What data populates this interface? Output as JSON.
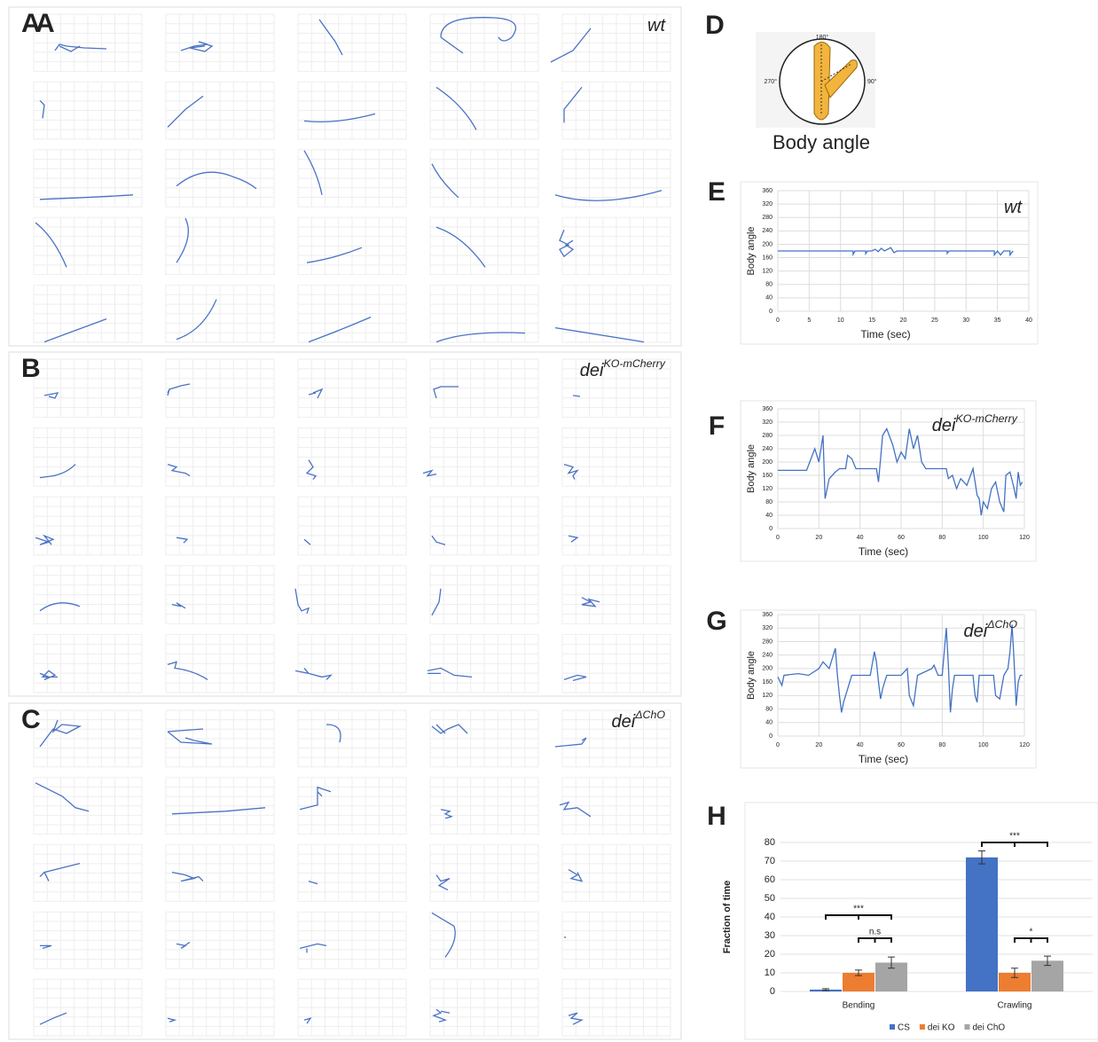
{
  "trajectory_panels": [
    {
      "label": "A",
      "genotype": "wt"
    },
    {
      "label": "B",
      "genotype": "dei",
      "superscript": "KO-mCherry"
    },
    {
      "label": "C",
      "genotype": "dei",
      "superscript": "ΔChO"
    }
  ],
  "diagram": {
    "label": "D",
    "top": "180°",
    "right": "90°",
    "left": "270°",
    "caption": "Body angle"
  },
  "chart_data": [
    {
      "type": "line",
      "label": "E",
      "annotation": {
        "text": "wt"
      },
      "ylabel": "Body angle",
      "xlabel": "Time (sec)",
      "color": "#4472c4",
      "grid": true,
      "xlim": [
        0,
        40
      ],
      "xticks": [
        0,
        5,
        10,
        15,
        20,
        25,
        30,
        35,
        40
      ],
      "ylim": [
        0,
        360
      ],
      "yticks": [
        0,
        40,
        80,
        120,
        160,
        200,
        240,
        280,
        320,
        360
      ],
      "x": [
        0,
        12,
        12,
        12.3,
        14,
        14,
        14.3,
        15,
        15.5,
        16,
        16.5,
        17,
        18,
        18.5,
        19,
        27,
        27,
        27.3,
        34.5,
        34.5,
        35,
        35.5,
        36,
        37,
        37,
        37.5
      ],
      "values": [
        180,
        180,
        170,
        180,
        180,
        172,
        180,
        180,
        185,
        178,
        188,
        180,
        190,
        175,
        180,
        180,
        173,
        180,
        180,
        168,
        180,
        168,
        180,
        180,
        168,
        180
      ]
    },
    {
      "type": "line",
      "label": "F",
      "annotation": {
        "text": "dei",
        "superscript": "KO-mCherry"
      },
      "ylabel": "Body angle",
      "xlabel": "Time (sec)",
      "color": "#4472c4",
      "grid": true,
      "xlim": [
        0,
        120
      ],
      "xticks": [
        0,
        20,
        40,
        60,
        80,
        100,
        120
      ],
      "ylim": [
        0,
        360
      ],
      "yticks": [
        0,
        40,
        80,
        120,
        160,
        200,
        240,
        280,
        320,
        360
      ],
      "x": [
        0,
        14,
        18,
        20,
        22,
        23,
        25,
        28,
        30,
        33,
        34,
        36,
        38,
        48,
        49,
        51,
        53,
        56,
        58,
        60,
        62,
        64,
        66,
        68,
        70,
        72,
        82,
        83,
        85,
        87,
        89,
        92,
        95,
        97,
        98,
        99,
        100,
        102,
        104,
        106,
        108,
        110,
        111,
        113,
        115,
        116,
        117,
        118,
        119
      ],
      "values": [
        175,
        175,
        240,
        200,
        280,
        90,
        150,
        170,
        180,
        180,
        220,
        210,
        180,
        180,
        140,
        280,
        300,
        250,
        200,
        230,
        210,
        300,
        240,
        280,
        200,
        180,
        180,
        150,
        160,
        120,
        150,
        130,
        180,
        100,
        90,
        40,
        80,
        60,
        120,
        140,
        80,
        50,
        160,
        170,
        120,
        90,
        170,
        130,
        140
      ]
    },
    {
      "type": "line",
      "label": "G",
      "annotation": {
        "text": "dei",
        "superscript": "ΔChO"
      },
      "ylabel": "Body angle",
      "xlabel": "Time (sec)",
      "color": "#4472c4",
      "grid": true,
      "xlim": [
        0,
        120
      ],
      "xticks": [
        0,
        20,
        40,
        60,
        80,
        100,
        120
      ],
      "ylim": [
        0,
        360
      ],
      "yticks": [
        0,
        40,
        80,
        120,
        160,
        200,
        240,
        280,
        320,
        360
      ],
      "x": [
        0,
        2,
        3,
        10,
        15,
        20,
        22,
        25,
        27,
        28,
        29,
        30,
        31,
        32,
        34,
        36,
        45,
        47,
        48,
        49,
        50,
        51,
        53,
        60,
        63,
        64,
        66,
        68,
        75,
        76,
        78,
        80,
        81,
        82,
        83,
        84,
        85,
        86,
        95,
        96,
        97,
        98,
        105,
        106,
        108,
        110,
        112,
        113,
        114,
        115,
        116,
        117,
        118,
        119
      ],
      "values": [
        175,
        150,
        180,
        185,
        180,
        200,
        220,
        200,
        240,
        260,
        180,
        120,
        70,
        100,
        140,
        180,
        180,
        250,
        220,
        160,
        110,
        140,
        180,
        180,
        200,
        120,
        90,
        180,
        200,
        210,
        180,
        180,
        250,
        320,
        210,
        70,
        140,
        180,
        180,
        120,
        100,
        180,
        180,
        120,
        110,
        180,
        200,
        250,
        330,
        220,
        90,
        160,
        180,
        180
      ]
    },
    {
      "type": "bar",
      "label": "H",
      "ylabel": "Fraction of time",
      "grid": true,
      "categories": [
        "Bending",
        "Crawling"
      ],
      "ylim": [
        0,
        80
      ],
      "yticks": [
        0,
        10,
        20,
        30,
        40,
        50,
        60,
        70,
        80
      ],
      "series": [
        {
          "name": "CS",
          "color": "#4472c4",
          "values": [
            1,
            72
          ],
          "errors": [
            0.5,
            3.5
          ]
        },
        {
          "name": "dei KO",
          "color": "#ed7d31",
          "values": [
            10,
            10
          ],
          "errors": [
            1.5,
            2.5
          ]
        },
        {
          "name": "dei ChO",
          "color": "#a5a5a5",
          "values": [
            15.5,
            16.5
          ],
          "errors": [
            3,
            2.5
          ]
        }
      ],
      "significance": [
        "***",
        "n.s",
        "***",
        "*"
      ]
    }
  ]
}
